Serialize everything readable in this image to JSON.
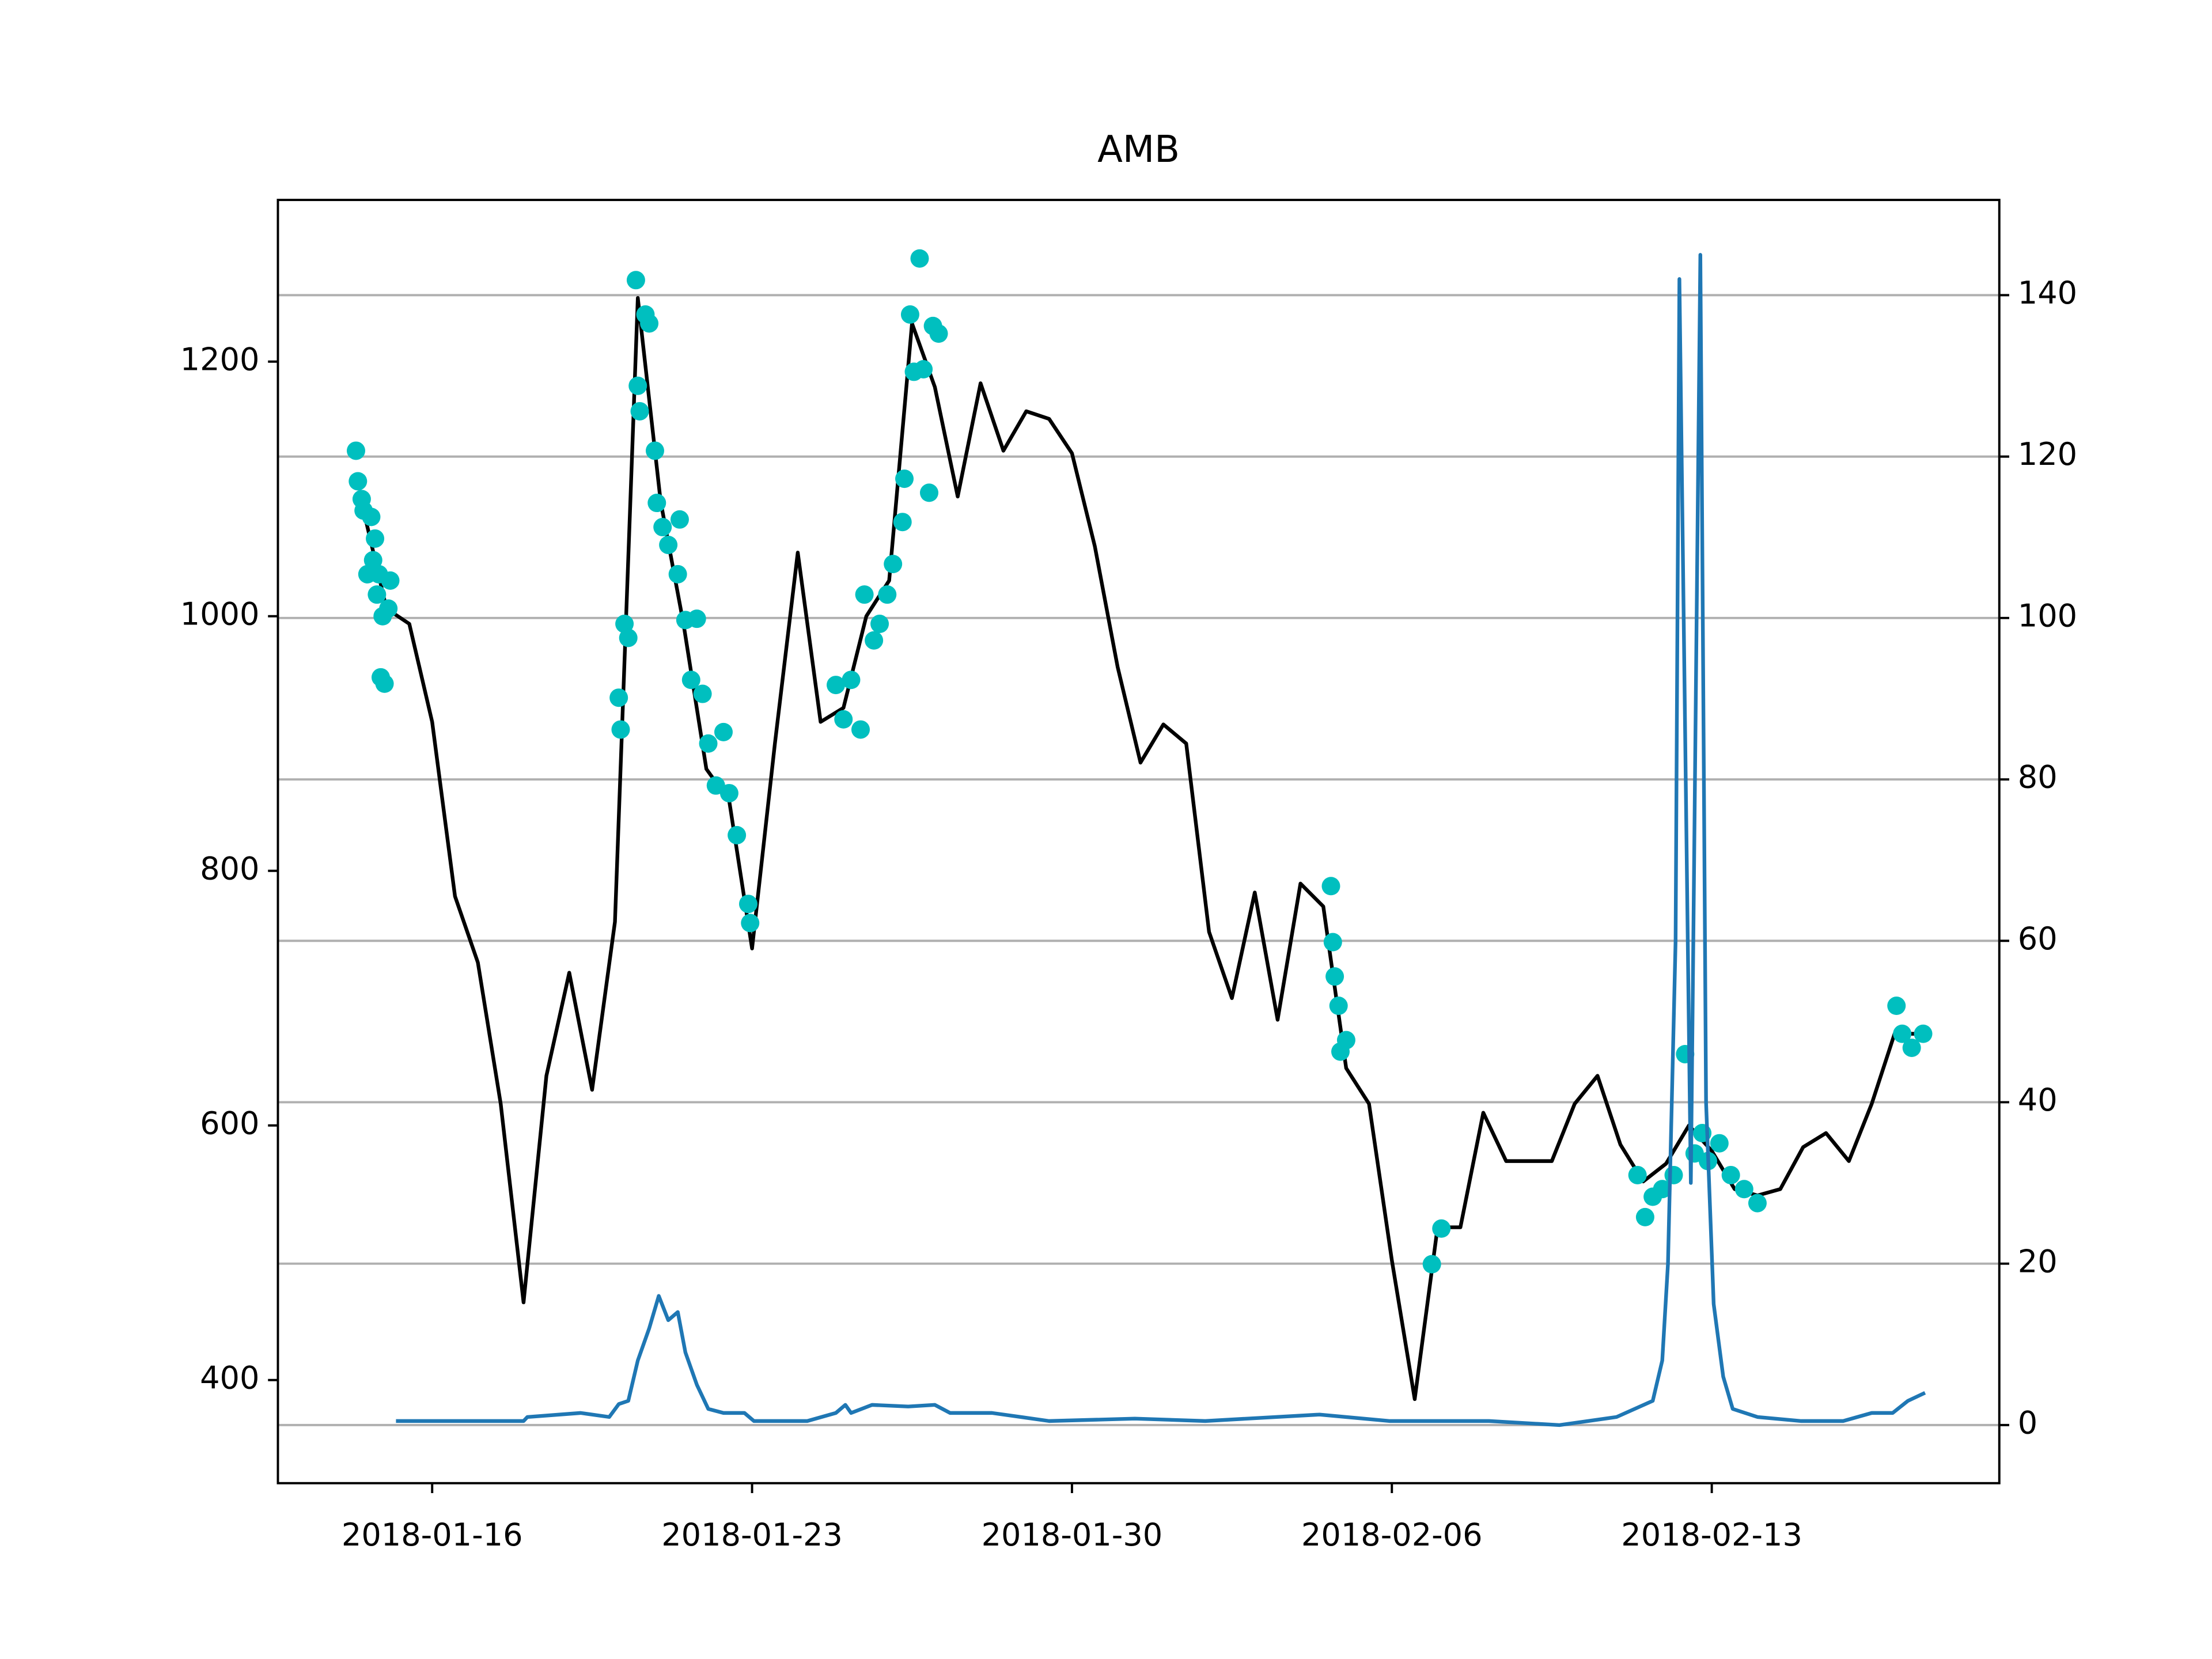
{
  "chart_data": {
    "type": "line",
    "title": "AMB",
    "xlim": [
      "2018-01-12T15:00",
      "2018-02-19T07:00"
    ],
    "xticks": [
      "2018-01-16",
      "2018-01-23",
      "2018-01-30",
      "2018-02-06",
      "2018-02-13"
    ],
    "ylim": [
      319,
      1327
    ],
    "yticks": [
      400,
      600,
      800,
      1000,
      1200
    ],
    "y2lim": [
      -7.2,
      151.8
    ],
    "y2ticks": [
      0,
      20,
      40,
      60,
      80,
      100,
      120,
      140
    ],
    "grid": "y2",
    "series": [
      {
        "type": "line",
        "color": "#000000",
        "x": [
          "2018-01-14T12:00",
          "2018-01-15T00:00",
          "2018-01-15T12:00",
          "2018-01-16T00:00",
          "2018-01-16T12:00",
          "2018-01-17T00:00",
          "2018-01-17T12:00",
          "2018-01-18T00:00",
          "2018-01-18T12:00",
          "2018-01-19T00:00",
          "2018-01-19T12:00",
          "2018-01-20T00:00",
          "2018-01-20T12:00",
          "2018-01-21T00:00",
          "2018-01-21T12:00",
          "2018-01-22T00:00",
          "2018-01-22T12:00",
          "2018-01-23T00:00",
          "2018-01-23T12:00",
          "2018-01-24T00:00",
          "2018-01-24T12:00",
          "2018-01-25T00:00",
          "2018-01-25T12:00",
          "2018-01-26T00:00",
          "2018-01-26T12:00",
          "2018-01-27T00:00",
          "2018-01-27T12:00",
          "2018-01-28T00:00",
          "2018-01-28T12:00",
          "2018-01-29T00:00",
          "2018-01-29T12:00",
          "2018-01-30T00:00",
          "2018-01-30T12:00",
          "2018-01-31T00:00",
          "2018-01-31T12:00",
          "2018-02-01T00:00",
          "2018-02-01T12:00",
          "2018-02-02T00:00",
          "2018-02-02T12:00",
          "2018-02-03T00:00",
          "2018-02-03T12:00",
          "2018-02-04T00:00",
          "2018-02-04T12:00",
          "2018-02-05T00:00",
          "2018-02-05T12:00",
          "2018-02-06T00:00",
          "2018-02-06T12:00",
          "2018-02-07T00:00",
          "2018-02-07T12:00",
          "2018-02-08T00:00",
          "2018-02-08T12:00",
          "2018-02-09T00:00",
          "2018-02-09T12:00",
          "2018-02-10T00:00",
          "2018-02-10T12:00",
          "2018-02-11T00:00",
          "2018-02-11T12:00",
          "2018-02-12T00:00",
          "2018-02-12T12:00",
          "2018-02-13T00:00",
          "2018-02-13T12:00",
          "2018-02-14T00:00",
          "2018-02-14T12:00",
          "2018-02-15T00:00",
          "2018-02-15T12:00",
          "2018-02-16T00:00",
          "2018-02-16T12:00",
          "2018-02-17T00:00",
          "2018-02-17T12:00"
        ],
        "values": [
          1083,
          1006,
          994,
          917,
          780,
          728,
          617,
          461,
          639,
          720,
          628,
          760,
          1250,
          1090,
          994,
          880,
          855,
          739,
          900,
          1050,
          917,
          928,
          1000,
          1028,
          1230,
          1180,
          1094,
          1183,
          1130,
          1161,
          1155,
          1128,
          1055,
          960,
          885,
          915,
          900,
          752,
          700,
          783,
          683,
          790,
          772,
          645,
          617,
          494,
          385,
          520,
          520,
          610,
          572,
          572,
          572,
          617,
          639,
          585,
          556,
          570,
          600,
          580,
          550,
          545,
          550,
          583,
          594,
          572,
          617,
          672,
          672
        ]
      },
      {
        "type": "scatter",
        "color": "#00bfbf",
        "x": [
          "2018-01-14T08:00",
          "2018-01-14T09:00",
          "2018-01-14T11:00",
          "2018-01-14T12:00",
          "2018-01-14T14:00",
          "2018-01-14T16:00",
          "2018-01-14T17:00",
          "2018-01-14T18:00",
          "2018-01-14T19:00",
          "2018-01-14T20:00",
          "2018-01-14T21:00",
          "2018-01-14T22:00",
          "2018-01-14T23:00",
          "2018-01-15T01:00",
          "2018-01-15T02:00",
          "2018-01-20T02:00",
          "2018-01-20T03:00",
          "2018-01-20T05:00",
          "2018-01-20T07:00",
          "2018-01-20T11:00",
          "2018-01-20T12:00",
          "2018-01-20T13:00",
          "2018-01-20T16:00",
          "2018-01-20T18:00",
          "2018-01-20T21:00",
          "2018-01-20T22:00",
          "2018-01-21T01:00",
          "2018-01-21T04:00",
          "2018-01-21T09:00",
          "2018-01-21T10:00",
          "2018-01-21T13:00",
          "2018-01-21T16:00",
          "2018-01-21T19:00",
          "2018-01-21T22:00",
          "2018-01-22T01:00",
          "2018-01-22T05:00",
          "2018-01-22T09:00",
          "2018-01-22T12:00",
          "2018-01-22T16:00",
          "2018-01-22T22:00",
          "2018-01-22T23:00",
          "2018-01-24T20:00",
          "2018-01-25T00:00",
          "2018-01-25T04:00",
          "2018-01-25T09:00",
          "2018-01-25T11:00",
          "2018-01-25T16:00",
          "2018-01-25T19:00",
          "2018-01-25T23:00",
          "2018-01-26T02:00",
          "2018-01-26T07:00",
          "2018-01-26T08:00",
          "2018-01-26T11:00",
          "2018-01-26T13:00",
          "2018-01-26T16:00",
          "2018-01-26T18:00",
          "2018-01-26T21:00",
          "2018-01-26T23:00",
          "2018-01-27T02:00",
          "2018-02-04T16:00",
          "2018-02-04T17:00",
          "2018-02-04T18:00",
          "2018-02-04T20:00",
          "2018-02-04T21:00",
          "2018-02-05T00:00",
          "2018-02-06T21:00",
          "2018-02-07T02:00",
          "2018-02-11T09:00",
          "2018-02-11T13:00",
          "2018-02-11T17:00",
          "2018-02-11T22:00",
          "2018-02-12T04:00",
          "2018-02-12T10:00",
          "2018-02-12T15:00",
          "2018-02-12T19:00",
          "2018-02-12T22:00",
          "2018-02-13T04:00",
          "2018-02-13T10:00",
          "2018-02-13T17:00",
          "2018-02-14T00:00",
          "2018-02-17T01:00",
          "2018-02-17T04:00",
          "2018-02-17T09:00",
          "2018-02-17T15:00"
        ],
        "values": [
          1130,
          1106,
          1092,
          1083,
          1033,
          1078,
          1044,
          1061,
          1017,
          1033,
          952,
          1000,
          947,
          1006,
          1028,
          936,
          911,
          994,
          983,
          1264,
          1181,
          1161,
          1237,
          1230,
          1130,
          1089,
          1070,
          1056,
          1033,
          1076,
          997,
          950,
          998,
          939,
          900,
          867,
          909,
          861,
          828,
          774,
          759,
          946,
          919,
          950,
          911,
          1017,
          981,
          994,
          1017,
          1041,
          1074,
          1108,
          1237,
          1192,
          1281,
          1194,
          1097,
          1228,
          1222,
          788,
          744,
          717,
          694,
          658,
          667,
          491,
          519,
          561,
          528,
          544,
          550,
          561,
          656,
          578,
          594,
          572,
          586,
          561,
          550,
          539,
          694,
          672,
          661,
          672
        ]
      },
      {
        "type": "line",
        "axis": "y2",
        "color": "#1f77b4",
        "x": [
          "2018-01-15T05:00",
          "2018-01-18T00:00",
          "2018-01-18T02:00",
          "2018-01-19T06:00",
          "2018-01-19T21:00",
          "2018-01-20T02:00",
          "2018-01-20T07:00",
          "2018-01-20T12:00",
          "2018-01-20T18:00",
          "2018-01-20T23:00",
          "2018-01-21T04:00",
          "2018-01-21T09:00",
          "2018-01-21T13:00",
          "2018-01-21T19:00",
          "2018-01-22T01:00",
          "2018-01-22T09:00",
          "2018-01-22T20:00",
          "2018-01-23T01:00",
          "2018-01-24T05:00",
          "2018-01-24T20:00",
          "2018-01-25T01:00",
          "2018-01-25T04:00",
          "2018-01-25T15:00",
          "2018-01-26T10:00",
          "2018-01-27T00:00",
          "2018-01-27T08:00",
          "2018-01-28T06:00",
          "2018-01-29T12:00",
          "2018-01-31T09:00",
          "2018-02-01T22:00",
          "2018-02-03T11:00",
          "2018-02-04T10:00",
          "2018-02-05T23:00",
          "2018-02-08T03:00",
          "2018-02-09T16:00",
          "2018-02-10T22:00",
          "2018-02-11T17:00",
          "2018-02-11T22:00",
          "2018-02-12T01:00",
          "2018-02-12T05:00",
          "2018-02-12T07:00",
          "2018-02-12T13:00",
          "2018-02-12T18:00",
          "2018-02-12T21:00",
          "2018-02-13T01:00",
          "2018-02-13T06:00",
          "2018-02-13T11:00",
          "2018-02-14T00:00",
          "2018-02-14T23:00",
          "2018-02-15T21:00",
          "2018-02-16T12:00",
          "2018-02-16T23:00",
          "2018-02-17T07:00",
          "2018-02-17T16:00"
        ],
        "values": [
          0.5,
          0.5,
          1,
          1.5,
          1,
          2.6,
          3,
          8,
          12,
          16,
          13,
          14,
          9,
          5,
          2,
          1.5,
          1.5,
          0.5,
          0.5,
          1.5,
          2.5,
          1.5,
          2.5,
          2.3,
          2.5,
          1.5,
          1.5,
          0.5,
          0.8,
          0.5,
          1,
          1.3,
          0.5,
          0.5,
          0,
          1,
          3,
          8,
          20,
          60,
          142,
          30,
          145,
          40,
          15,
          6,
          2,
          1,
          0.5,
          0.5,
          1.5,
          1.5,
          3,
          4
        ]
      }
    ]
  }
}
